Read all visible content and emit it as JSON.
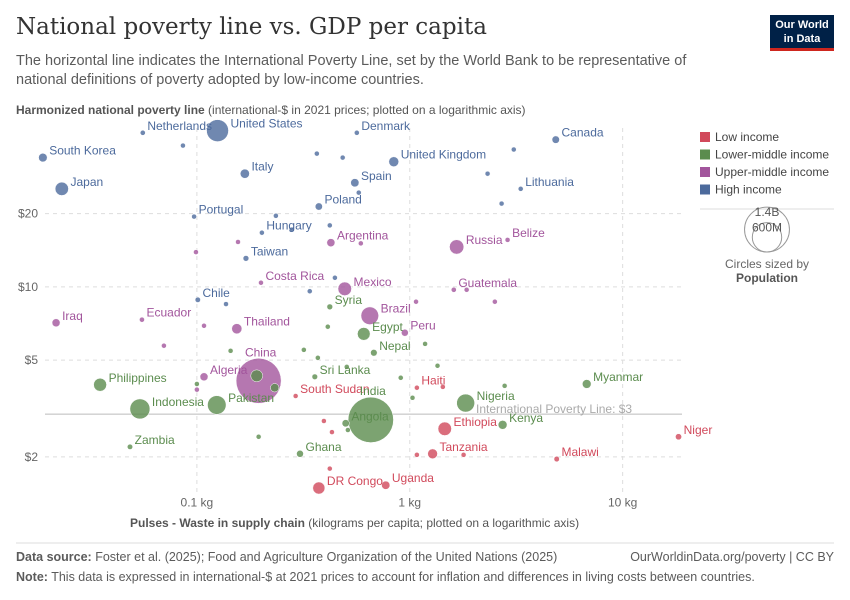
{
  "chart_data": {
    "type": "scatter",
    "title": "National poverty line vs. GDP per capita",
    "subtitle": "The horizontal line indicates the International Poverty Line, set by the World Bank to be representative of national definitions of poverty adopted by low-income countries.",
    "y_label_bold": "Harmonized national poverty line",
    "y_label_rest": "(international-$ in 2021 prices; plotted on a logarithmic axis)",
    "x_label_bold": "Pulses - Waste in supply chain",
    "x_label_rest": "(kilograms per capita; plotted on a logarithmic axis)",
    "x_log": true,
    "y_log": true,
    "grid": true,
    "xlim": [
      0.015,
      19
    ],
    "ylim": [
      1.4,
      45
    ],
    "xticks": [
      {
        "value": 0.1,
        "label": "0.1 kg"
      },
      {
        "value": 1,
        "label": "1 kg"
      },
      {
        "value": 10,
        "label": "10 kg"
      }
    ],
    "yticks": [
      {
        "value": 2,
        "label": "$2"
      },
      {
        "value": 5,
        "label": "$5"
      },
      {
        "value": 10,
        "label": "$10"
      },
      {
        "value": 20,
        "label": "$20"
      }
    ],
    "reference_line": {
      "value": 3,
      "label": "International Poverty Line: $3"
    },
    "legend_position": "right",
    "size_legend": {
      "title": "Circles sized by",
      "variable": "Population",
      "sizes": [
        {
          "value": 1400,
          "label": "1.4B"
        },
        {
          "value": 600,
          "label": "600M"
        }
      ]
    },
    "series": [
      {
        "name": "Low income",
        "color": "#d1495b",
        "x": [
          1.08,
          0.291,
          1.46,
          1.28,
          18.3,
          4.9,
          0.374,
          0.771,
          0.421,
          0.395,
          1.43,
          1.79,
          1.08,
          0.431
        ],
        "values": [
          3.85,
          3.56,
          2.61,
          2.06,
          2.42,
          1.96,
          1.49,
          1.53,
          1.79,
          2.81,
          3.88,
          2.04,
          2.04,
          2.53
        ],
        "sizes": [
          12,
          11,
          127,
          67,
          27,
          21,
          102,
          48,
          6,
          8,
          5,
          10,
          9,
          7
        ],
        "labels": [
          "Haiti",
          "South Sudan",
          "Ethiopia",
          "Tanzania",
          "Niger",
          "Malawi",
          "DR Congo",
          "Uganda",
          null,
          null,
          null,
          null,
          null,
          null
        ]
      },
      {
        "name": "Lower-middle income",
        "color": "#5b8c4e",
        "x": [
          0.0351,
          0.054,
          0.124,
          0.358,
          0.656,
          0.5,
          1.83,
          2.73,
          6.78,
          0.608,
          0.678,
          0.421,
          0.0485,
          0.305,
          0.191,
          0.232,
          0.412,
          0.144,
          0.318,
          0.506,
          0.907,
          1.03,
          1.18,
          1.35,
          0.195,
          0.512,
          2.79,
          0.37,
          0.1
        ],
        "values": [
          3.96,
          3.15,
          3.27,
          4.27,
          2.84,
          2.75,
          3.33,
          2.71,
          3.99,
          6.41,
          5.36,
          8.28,
          2.2,
          2.06,
          4.31,
          3.85,
          6.86,
          5.46,
          5.51,
          4.69,
          4.23,
          3.5,
          5.83,
          4.74,
          2.42,
          2.58,
          3.92,
          5.11,
          3.99
        ],
        "sizes": [
          117,
          278,
          240,
          22,
          1430,
          37,
          224,
          55,
          54,
          113,
          31,
          23,
          20,
          34,
          99,
          50,
          10,
          8,
          6,
          12,
          5,
          7,
          4,
          6,
          9,
          11,
          3,
          5,
          8
        ],
        "labels": [
          "Philippines",
          "Indonesia",
          "Pakistan",
          "Sri Lanka",
          "India",
          "Angola",
          "Nigeria",
          "Kenya",
          "Myanmar",
          "Egypt",
          "Nepal",
          "Syria",
          "Zambia",
          "Ghana",
          null,
          null,
          null,
          null,
          null,
          null,
          null,
          null,
          null,
          null,
          null,
          null,
          null,
          null,
          null
        ]
      },
      {
        "name": "Upper-middle income",
        "color": "#a2559c",
        "x": [
          0.426,
          1.66,
          2.88,
          0.2,
          0.495,
          1.61,
          0.649,
          0.0218,
          0.0552,
          0.154,
          0.948,
          0.195,
          0.108,
          0.07,
          0.099,
          0.589,
          1.07,
          2.51,
          1.85,
          0.108,
          0.1,
          0.156
        ],
        "values": [
          15.2,
          14.6,
          15.6,
          10.4,
          9.82,
          9.73,
          7.61,
          7.12,
          7.33,
          6.73,
          6.48,
          4.11,
          4.27,
          5.73,
          13.9,
          15.1,
          8.69,
          8.69,
          9.73,
          6.92,
          3.78,
          15.3
        ],
        "sizes": [
          46,
          144,
          0.4,
          5,
          128,
          18,
          216,
          45,
          18,
          72,
          34,
          1410,
          45,
          12,
          3,
          5,
          4,
          2,
          6,
          7,
          3,
          2
        ],
        "labels": [
          "Argentina",
          "Russia",
          "Belize",
          "Costa Rica",
          "Mexico",
          "Guatemala",
          "Brazil",
          "Iraq",
          "Ecuador",
          "Thailand",
          "Peru",
          "China",
          "Algeria",
          null,
          null,
          null,
          null,
          null,
          null,
          null,
          null,
          null
        ]
      },
      {
        "name": "High income",
        "color": "#4c6a9c",
        "x": [
          0.125,
          0.0557,
          0.564,
          4.85,
          0.0189,
          0.841,
          0.168,
          0.552,
          3.32,
          0.0232,
          0.374,
          0.097,
          0.202,
          0.17,
          0.101,
          0.086,
          0.366,
          0.484,
          3.08,
          2.32,
          2.7,
          0.576,
          0.235,
          0.421,
          0.279,
          0.339,
          0.137,
          0.445
        ],
        "values": [
          43.9,
          43,
          43,
          40.3,
          34,
          32.7,
          29.2,
          26.8,
          25.3,
          25.3,
          21.4,
          19.45,
          16.7,
          13.1,
          8.85,
          38.1,
          35.3,
          34,
          36.7,
          29.2,
          22,
          24.4,
          19.6,
          17.9,
          17.2,
          9.6,
          8.5,
          10.9
        ],
        "sizes": [
          335,
          18,
          6,
          39,
          52,
          68,
          59,
          48,
          3,
          124,
          37,
          10,
          10,
          23,
          20,
          9,
          5,
          11,
          4,
          2,
          3,
          6,
          5,
          4,
          3,
          2,
          1,
          2
        ],
        "labels": [
          "United States",
          "Netherlands",
          "Denmark",
          "Canada",
          "South Korea",
          "United Kingdom",
          "Italy",
          "Spain",
          "Lithuania",
          "Japan",
          "Poland",
          "Portugal",
          "Hungary",
          "Taiwan",
          "Chile",
          null,
          null,
          null,
          null,
          null,
          null,
          null,
          null,
          null,
          null,
          null,
          null,
          null
        ]
      }
    ]
  },
  "logo": [
    "Our World",
    "in Data"
  ],
  "footer": {
    "source_bold": "Data source:",
    "source": "Foster et al. (2025); Food and Agriculture Organization of the United Nations (2025)",
    "link": "OurWorldinData.org/poverty | CC BY",
    "note_bold": "Note:",
    "note": "This data is expressed in international-$ at 2021 prices to account for inflation and differences in living costs between countries."
  }
}
